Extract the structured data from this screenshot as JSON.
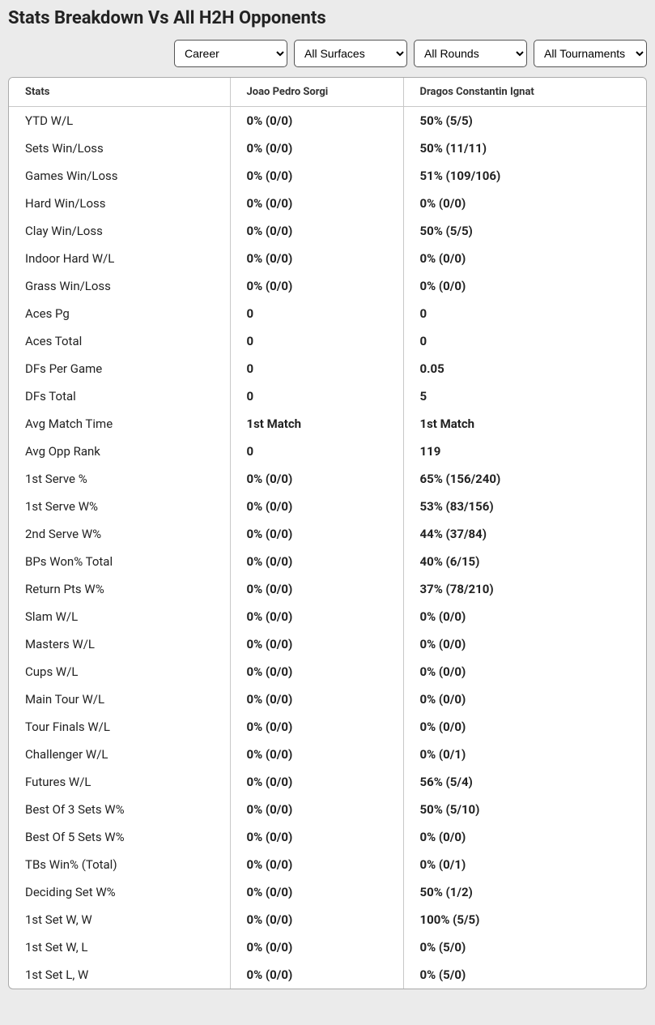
{
  "title": "Stats Breakdown Vs All H2H Opponents",
  "filters": {
    "range": {
      "selected": "Career",
      "options": [
        "Career"
      ]
    },
    "surface": {
      "selected": "All Surfaces",
      "options": [
        "All Surfaces"
      ]
    },
    "round": {
      "selected": "All Rounds",
      "options": [
        "All Rounds"
      ]
    },
    "tournament": {
      "selected": "All Tournaments",
      "options": [
        "All Tournaments"
      ]
    }
  },
  "table": {
    "headers": {
      "stats": "Stats",
      "player1": "Joao Pedro Sorgi",
      "player2": "Dragos Constantin Ignat"
    },
    "rows": [
      {
        "stat": "YTD W/L",
        "p1": "0% (0/0)",
        "p2": "50% (5/5)"
      },
      {
        "stat": "Sets Win/Loss",
        "p1": "0% (0/0)",
        "p2": "50% (11/11)"
      },
      {
        "stat": "Games Win/Loss",
        "p1": "0% (0/0)",
        "p2": "51% (109/106)"
      },
      {
        "stat": "Hard Win/Loss",
        "p1": "0% (0/0)",
        "p2": "0% (0/0)"
      },
      {
        "stat": "Clay Win/Loss",
        "p1": "0% (0/0)",
        "p2": "50% (5/5)"
      },
      {
        "stat": "Indoor Hard W/L",
        "p1": "0% (0/0)",
        "p2": "0% (0/0)"
      },
      {
        "stat": "Grass Win/Loss",
        "p1": "0% (0/0)",
        "p2": "0% (0/0)"
      },
      {
        "stat": "Aces Pg",
        "p1": "0",
        "p2": "0"
      },
      {
        "stat": "Aces Total",
        "p1": "0",
        "p2": "0"
      },
      {
        "stat": "DFs Per Game",
        "p1": "0",
        "p2": "0.05"
      },
      {
        "stat": "DFs Total",
        "p1": "0",
        "p2": "5"
      },
      {
        "stat": "Avg Match Time",
        "p1": "1st Match",
        "p2": "1st Match"
      },
      {
        "stat": "Avg Opp Rank",
        "p1": "0",
        "p2": "119"
      },
      {
        "stat": "1st Serve %",
        "p1": "0% (0/0)",
        "p2": "65% (156/240)"
      },
      {
        "stat": "1st Serve W%",
        "p1": "0% (0/0)",
        "p2": "53% (83/156)"
      },
      {
        "stat": "2nd Serve W%",
        "p1": "0% (0/0)",
        "p2": "44% (37/84)"
      },
      {
        "stat": "BPs Won% Total",
        "p1": "0% (0/0)",
        "p2": "40% (6/15)"
      },
      {
        "stat": "Return Pts W%",
        "p1": "0% (0/0)",
        "p2": "37% (78/210)"
      },
      {
        "stat": "Slam W/L",
        "p1": "0% (0/0)",
        "p2": "0% (0/0)"
      },
      {
        "stat": "Masters W/L",
        "p1": "0% (0/0)",
        "p2": "0% (0/0)"
      },
      {
        "stat": "Cups W/L",
        "p1": "0% (0/0)",
        "p2": "0% (0/0)"
      },
      {
        "stat": "Main Tour W/L",
        "p1": "0% (0/0)",
        "p2": "0% (0/0)"
      },
      {
        "stat": "Tour Finals W/L",
        "p1": "0% (0/0)",
        "p2": "0% (0/0)"
      },
      {
        "stat": "Challenger W/L",
        "p1": "0% (0/0)",
        "p2": "0% (0/1)"
      },
      {
        "stat": "Futures W/L",
        "p1": "0% (0/0)",
        "p2": "56% (5/4)"
      },
      {
        "stat": "Best Of 3 Sets W%",
        "p1": "0% (0/0)",
        "p2": "50% (5/10)"
      },
      {
        "stat": "Best Of 5 Sets W%",
        "p1": "0% (0/0)",
        "p2": "0% (0/0)"
      },
      {
        "stat": "TBs Win% (Total)",
        "p1": "0% (0/0)",
        "p2": "0% (0/1)"
      },
      {
        "stat": "Deciding Set W%",
        "p1": "0% (0/0)",
        "p2": "50% (1/2)"
      },
      {
        "stat": "1st Set W, W",
        "p1": "0% (0/0)",
        "p2": "100% (5/5)"
      },
      {
        "stat": "1st Set W, L",
        "p1": "0% (0/0)",
        "p2": "0% (5/0)"
      },
      {
        "stat": "1st Set L, W",
        "p1": "0% (0/0)",
        "p2": "0% (5/0)"
      }
    ]
  }
}
